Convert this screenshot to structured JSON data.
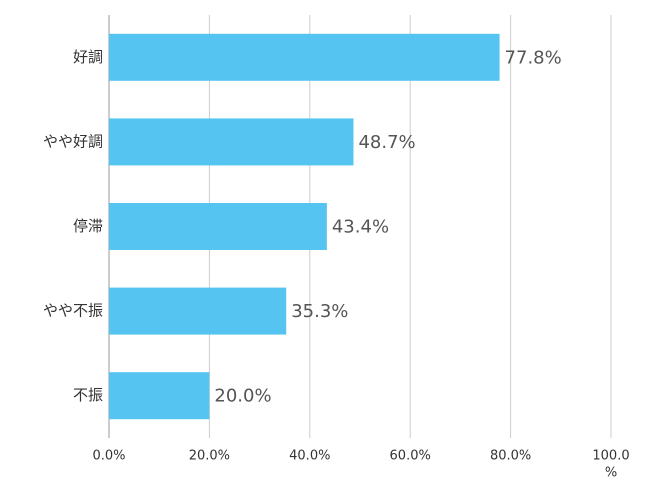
{
  "chart_data": {
    "type": "bar",
    "orientation": "horizontal",
    "categories": [
      "好調",
      "やや好調",
      "停滞",
      "やや不振",
      "不振"
    ],
    "values": [
      77.8,
      48.7,
      43.4,
      35.3,
      20.0
    ],
    "value_labels": [
      "77.8%",
      "48.7%",
      "43.4%",
      "35.3%",
      "20.0%"
    ],
    "color": "#55c4f1",
    "xlim": [
      0,
      100
    ],
    "xticks": [
      {
        "value": 0,
        "label": "0.0%"
      },
      {
        "value": 20,
        "label": "20.0%"
      },
      {
        "value": 40,
        "label": "40.0%"
      },
      {
        "value": 60,
        "label": "60.0%"
      },
      {
        "value": 80,
        "label": "80.0%"
      },
      {
        "value": 100,
        "label": "100.0"
      }
    ],
    "x_label": "%",
    "grid": true
  }
}
